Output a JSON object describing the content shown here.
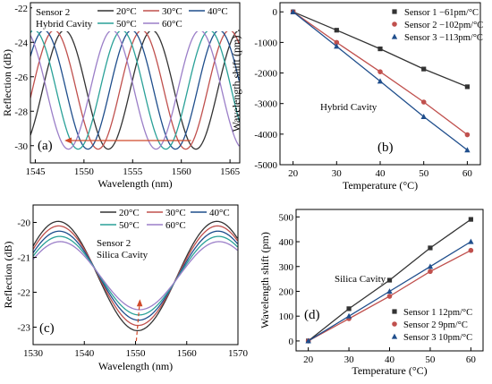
{
  "chart_data": [
    {
      "panel": "(a)",
      "type": "line",
      "xlabel": "Wavelength (nm)",
      "ylabel": "Reflection (dB)",
      "xlim": [
        1544.5,
        1566
      ],
      "ylim": [
        -31,
        -21.7
      ],
      "xticks": [
        1545,
        1550,
        1555,
        1560,
        1565
      ],
      "yticks": [
        -30,
        -28,
        -26,
        -24,
        -22
      ],
      "annotations": [
        "Sensor 2",
        "Hybrid Cavity"
      ],
      "legend": "top-right",
      "arrow": {
        "direction": "left",
        "from_x": 1561,
        "to_x": 1548,
        "y": -29.7
      },
      "curve": {
        "mean": -26.75,
        "amplitude": 3.45,
        "period": 9.0
      },
      "series": [
        {
          "name": "20°C",
          "color": "#333333",
          "dip_wavelength": 1561.5
        },
        {
          "name": "30°C",
          "color": "#c0504d",
          "dip_wavelength": 1560.45
        },
        {
          "name": "40°C",
          "color": "#1f4e8c",
          "dip_wavelength": 1559.4
        },
        {
          "name": "50°C",
          "color": "#2aa198",
          "dip_wavelength": 1558.4
        },
        {
          "name": "60°C",
          "color": "#9b7fc8",
          "dip_wavelength": 1557.4
        }
      ]
    },
    {
      "panel": "(b)",
      "type": "line",
      "xlabel": "Temperature (°C)",
      "ylabel": "Wavelength shift (pm)",
      "xlim": [
        17,
        63
      ],
      "ylim": [
        -5000,
        300
      ],
      "xticks": [
        20,
        30,
        40,
        50,
        60
      ],
      "yticks": [
        0,
        -1000,
        -2000,
        -3000,
        -4000,
        -5000
      ],
      "annotation": "Hybrid Cavity",
      "legend": "top-right",
      "x": [
        20,
        30,
        40,
        50,
        60
      ],
      "series": [
        {
          "name": "Sensor 1 −61pm/°C",
          "color": "#333333",
          "marker": "square",
          "values": [
            0,
            -600,
            -1210,
            -1870,
            -2450
          ]
        },
        {
          "name": "Sensor 2 −102pm/°C",
          "color": "#c0504d",
          "marker": "circle",
          "values": [
            0,
            -1000,
            -1960,
            -2950,
            -4020
          ]
        },
        {
          "name": "Sensor 3 −113pm/°C",
          "color": "#1f4e8c",
          "marker": "triangle",
          "values": [
            0,
            -1130,
            -2270,
            -3430,
            -4520
          ]
        }
      ]
    },
    {
      "panel": "(c)",
      "type": "line",
      "xlabel": "Wavelength (nm)",
      "ylabel": "Reflection (dB)",
      "xlim": [
        1530,
        1570
      ],
      "ylim": [
        -23.5,
        -19.5
      ],
      "xticks": [
        1530,
        1540,
        1550,
        1560,
        1570
      ],
      "yticks": [
        -20,
        -21,
        -22,
        -23
      ],
      "annotations": [
        "Sensor 2",
        "Silica Cavity"
      ],
      "legend": "top-right",
      "arrow": {
        "direction": "up",
        "x": 1550.5,
        "from_y": -23.4,
        "to_y": -22.2
      },
      "curve": {
        "period": 31.0,
        "dip_wavelength": 1550.5
      },
      "series": [
        {
          "name": "20°C",
          "color": "#333333",
          "dip_wavelength": 1550.4,
          "max": -19.97,
          "min": -23.1
        },
        {
          "name": "30°C",
          "color": "#c0504d",
          "dip_wavelength": 1550.5,
          "max": -20.1,
          "min": -22.95
        },
        {
          "name": "40°C",
          "color": "#1f4e8c",
          "dip_wavelength": 1550.6,
          "max": -20.25,
          "min": -22.8
        },
        {
          "name": "50°C",
          "color": "#2aa198",
          "dip_wavelength": 1550.7,
          "max": -20.4,
          "min": -22.65
        },
        {
          "name": "60°C",
          "color": "#9b7fc8",
          "dip_wavelength": 1550.8,
          "max": -20.55,
          "min": -22.5
        }
      ]
    },
    {
      "panel": "(d)",
      "type": "line",
      "xlabel": "Temperature (°C)",
      "ylabel": "Wavelength shift (pm)",
      "xlim": [
        17,
        63
      ],
      "ylim": [
        -40,
        530
      ],
      "xticks": [
        20,
        30,
        40,
        50,
        60
      ],
      "yticks": [
        0,
        100,
        200,
        300,
        400,
        500
      ],
      "annotation": "Silica Cavity",
      "legend": "bottom-right",
      "x": [
        20,
        30,
        40,
        50,
        60
      ],
      "series": [
        {
          "name": "Sensor 1 12pm/°C",
          "color": "#333333",
          "marker": "square",
          "values": [
            0,
            130,
            245,
            375,
            490
          ]
        },
        {
          "name": "Sensor 2 9pm/°C",
          "color": "#c0504d",
          "marker": "circle",
          "values": [
            0,
            90,
            180,
            280,
            365
          ]
        },
        {
          "name": "Sensor 3 10pm/°C",
          "color": "#1f4e8c",
          "marker": "triangle",
          "values": [
            0,
            100,
            200,
            300,
            400
          ]
        }
      ]
    }
  ]
}
